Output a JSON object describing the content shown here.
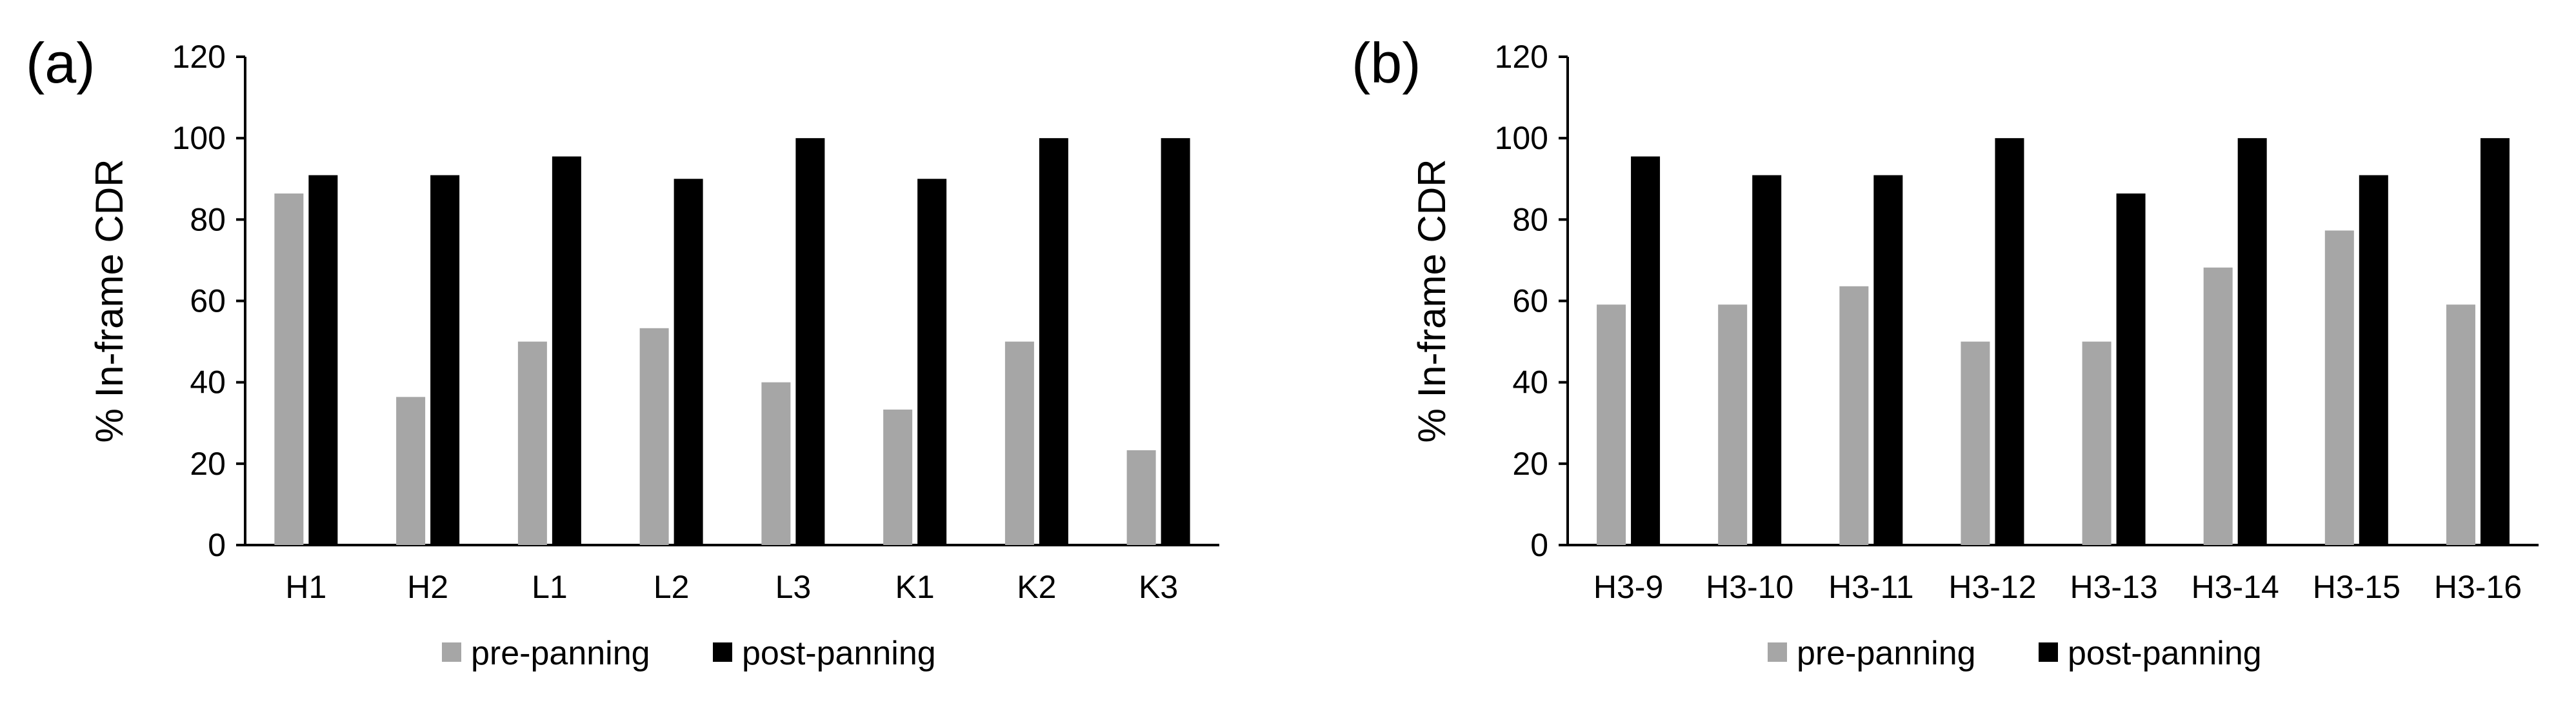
{
  "colors": {
    "pre": "#a6a6a6",
    "post": "#000000",
    "axis": "#000000"
  },
  "chart_data": [
    {
      "type": "bar",
      "panel_label": "(a)",
      "ylabel": "% In-frame CDR",
      "xlabel": "",
      "ylim": [
        0,
        120
      ],
      "yticks": [
        0,
        20,
        40,
        60,
        80,
        100,
        120
      ],
      "categories": [
        "H1",
        "H2",
        "L1",
        "L2",
        "L3",
        "K1",
        "K2",
        "K3"
      ],
      "series": [
        {
          "name": "pre-panning",
          "values": [
            86.4,
            36.4,
            50.0,
            53.3,
            40.0,
            33.3,
            50.0,
            23.3
          ]
        },
        {
          "name": "post-panning",
          "values": [
            90.9,
            90.9,
            95.5,
            90.0,
            100,
            90.0,
            100,
            100
          ]
        }
      ],
      "legend": "bottom"
    },
    {
      "type": "bar",
      "panel_label": "(b)",
      "ylabel": "% In-frame CDR",
      "xlabel": "",
      "ylim": [
        0,
        120
      ],
      "yticks": [
        0,
        20,
        40,
        60,
        80,
        100,
        120
      ],
      "categories": [
        "H3-9",
        "H3-10",
        "H3-11",
        "H3-12",
        "H3-13",
        "H3-14",
        "H3-15",
        "H3-16"
      ],
      "series": [
        {
          "name": "pre-panning",
          "values": [
            59.1,
            59.1,
            63.6,
            50.0,
            50.0,
            68.2,
            77.3,
            59.1
          ]
        },
        {
          "name": "post-panning",
          "values": [
            95.5,
            90.9,
            90.9,
            100,
            86.4,
            100,
            90.9,
            100
          ]
        }
      ],
      "legend": "bottom"
    }
  ]
}
